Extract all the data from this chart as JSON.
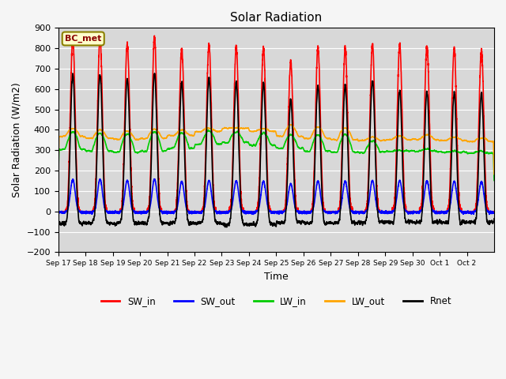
{
  "title": "Solar Radiation",
  "ylabel": "Solar Radiation (W/m2)",
  "xlabel": "Time",
  "ylim": [
    -200,
    900
  ],
  "yticks": [
    -200,
    -100,
    0,
    100,
    200,
    300,
    400,
    500,
    600,
    700,
    800,
    900
  ],
  "label": "BC_met",
  "x_tick_labels": [
    "Sep 17",
    "Sep 18",
    "Sep 19",
    "Sep 20",
    "Sep 21",
    "Sep 22",
    "Sep 23",
    "Sep 24",
    "Sep 25",
    "Sep 26",
    "Sep 27",
    "Sep 28",
    "Sep 29",
    "Sep 30",
    "Oct 1",
    "Oct 2"
  ],
  "n_days": 16,
  "bg_color": "#d8d8d8",
  "fig_bg": "#f5f5f5",
  "lines": {
    "SW_in": {
      "color": "#ff0000",
      "lw": 1.2
    },
    "SW_out": {
      "color": "#0000ff",
      "lw": 1.2
    },
    "LW_in": {
      "color": "#00cc00",
      "lw": 1.2
    },
    "LW_out": {
      "color": "#ffa500",
      "lw": 1.2
    },
    "Rnet": {
      "color": "#000000",
      "lw": 1.2
    }
  },
  "SW_in_peaks": [
    845,
    850,
    820,
    855,
    795,
    820,
    805,
    800,
    735,
    800,
    800,
    820,
    815,
    810,
    800,
    790
  ],
  "LW_in_night": [
    305,
    295,
    290,
    295,
    310,
    330,
    340,
    325,
    310,
    295,
    290,
    290,
    295,
    295,
    290,
    285
  ],
  "LW_in_day": [
    390,
    385,
    380,
    390,
    385,
    395,
    390,
    385,
    375,
    375,
    380,
    345,
    300,
    305,
    295,
    295
  ],
  "LW_out_night": [
    368,
    358,
    353,
    358,
    372,
    392,
    408,
    392,
    368,
    358,
    353,
    348,
    352,
    352,
    348,
    343
  ],
  "LW_out_day": [
    405,
    400,
    395,
    405,
    400,
    410,
    410,
    405,
    425,
    415,
    410,
    365,
    370,
    375,
    365,
    360
  ]
}
